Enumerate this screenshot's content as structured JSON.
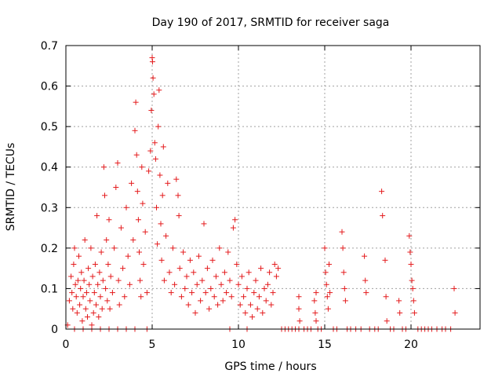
{
  "chart_data": {
    "type": "scatter",
    "title": "Day 190 of 2017, SRMTID for receiver saga",
    "xlabel": "GPS time / hours",
    "ylabel": "SRMTID / TECUs",
    "xlim": [
      0,
      24
    ],
    "ylim": [
      0,
      0.7
    ],
    "xticks": [
      0,
      5,
      10,
      15,
      20
    ],
    "yticks": [
      0,
      0.1,
      0.2,
      0.3,
      0.4,
      0.5,
      0.6,
      0.7
    ],
    "x_tick_labels": [
      "0",
      "5",
      "10",
      "15",
      "20"
    ],
    "y_tick_labels": [
      "0",
      "0.1",
      "0.2",
      "0.3",
      "0.4",
      "0.5",
      "0.6",
      "0.7"
    ],
    "grid": true,
    "marker": "plus",
    "series_color": "#e41a1c",
    "series": [
      {
        "name": "SRMTID",
        "points": [
          [
            0.1,
            0.01
          ],
          [
            0.2,
            0.07
          ],
          [
            0.3,
            0.13
          ],
          [
            0.35,
            0.09
          ],
          [
            0.4,
            0.05
          ],
          [
            0.45,
            0.16
          ],
          [
            0.5,
            0.2
          ],
          [
            0.55,
            0.11
          ],
          [
            0.6,
            0.08
          ],
          [
            0.65,
            0.04
          ],
          [
            0.7,
            0.12
          ],
          [
            0.75,
            0.18
          ],
          [
            0.8,
            0.06
          ],
          [
            0.85,
            0.1
          ],
          [
            0.9,
            0.14
          ],
          [
            0.95,
            0.02
          ],
          [
            1.0,
            0.08
          ],
          [
            1.05,
            0.12
          ],
          [
            1.1,
            0.22
          ],
          [
            1.15,
            0.05
          ],
          [
            1.2,
            0.09
          ],
          [
            1.25,
            0.03
          ],
          [
            1.3,
            0.15
          ],
          [
            1.35,
            0.11
          ],
          [
            1.4,
            0.07
          ],
          [
            1.45,
            0.2
          ],
          [
            1.5,
            0.01
          ],
          [
            1.55,
            0.13
          ],
          [
            1.6,
            0.04
          ],
          [
            1.65,
            0.09
          ],
          [
            1.7,
            0.16
          ],
          [
            1.75,
            0.06
          ],
          [
            1.8,
            0.28
          ],
          [
            1.85,
            0.11
          ],
          [
            1.9,
            0.03
          ],
          [
            1.95,
            0.14
          ],
          [
            2.0,
            0.08
          ],
          [
            2.05,
            0.19
          ],
          [
            2.1,
            0.05
          ],
          [
            2.15,
            0.12
          ],
          [
            2.2,
            0.4
          ],
          [
            2.25,
            0.33
          ],
          [
            2.3,
            0.1
          ],
          [
            2.35,
            0.22
          ],
          [
            2.4,
            0.07
          ],
          [
            2.45,
            0.16
          ],
          [
            2.5,
            0.27
          ],
          [
            2.55,
            0.05
          ],
          [
            2.6,
            0.13
          ],
          [
            2.7,
            0.09
          ],
          [
            2.8,
            0.2
          ],
          [
            2.9,
            0.35
          ],
          [
            3.0,
            0.41
          ],
          [
            3.05,
            0.12
          ],
          [
            3.1,
            0.06
          ],
          [
            3.2,
            0.25
          ],
          [
            3.3,
            0.15
          ],
          [
            3.4,
            0.08
          ],
          [
            3.5,
            0.3
          ],
          [
            3.6,
            0.18
          ],
          [
            3.7,
            0.11
          ],
          [
            3.8,
            0.36
          ],
          [
            3.9,
            0.22
          ],
          [
            4.0,
            0.49
          ],
          [
            4.05,
            0.56
          ],
          [
            4.1,
            0.43
          ],
          [
            4.15,
            0.34
          ],
          [
            4.2,
            0.27
          ],
          [
            4.25,
            0.19
          ],
          [
            4.3,
            0.12
          ],
          [
            4.35,
            0.08
          ],
          [
            4.4,
            0.4
          ],
          [
            4.45,
            0.31
          ],
          [
            4.5,
            0.16
          ],
          [
            4.6,
            0.24
          ],
          [
            4.7,
            0.09
          ],
          [
            4.8,
            0.39
          ],
          [
            4.9,
            0.44
          ],
          [
            4.95,
            0.54
          ],
          [
            5.0,
            0.67
          ],
          [
            5.02,
            0.66
          ],
          [
            5.05,
            0.62
          ],
          [
            5.1,
            0.58
          ],
          [
            5.15,
            0.46
          ],
          [
            5.2,
            0.42
          ],
          [
            5.25,
            0.3
          ],
          [
            5.3,
            0.21
          ],
          [
            5.35,
            0.5
          ],
          [
            5.4,
            0.59
          ],
          [
            5.45,
            0.38
          ],
          [
            5.5,
            0.26
          ],
          [
            5.55,
            0.17
          ],
          [
            5.6,
            0.33
          ],
          [
            5.65,
            0.45
          ],
          [
            5.7,
            0.12
          ],
          [
            5.8,
            0.23
          ],
          [
            5.9,
            0.36
          ],
          [
            6.0,
            0.14
          ],
          [
            6.1,
            0.09
          ],
          [
            6.2,
            0.2
          ],
          [
            6.3,
            0.11
          ],
          [
            6.4,
            0.37
          ],
          [
            6.5,
            0.33
          ],
          [
            6.55,
            0.28
          ],
          [
            6.6,
            0.15
          ],
          [
            6.7,
            0.08
          ],
          [
            6.8,
            0.19
          ],
          [
            6.9,
            0.1
          ],
          [
            7.0,
            0.13
          ],
          [
            7.1,
            0.06
          ],
          [
            7.2,
            0.17
          ],
          [
            7.3,
            0.09
          ],
          [
            7.4,
            0.14
          ],
          [
            7.5,
            0.04
          ],
          [
            7.6,
            0.11
          ],
          [
            7.7,
            0.18
          ],
          [
            7.8,
            0.07
          ],
          [
            7.9,
            0.12
          ],
          [
            8.0,
            0.26
          ],
          [
            8.1,
            0.09
          ],
          [
            8.2,
            0.15
          ],
          [
            8.3,
            0.05
          ],
          [
            8.4,
            0.1
          ],
          [
            8.5,
            0.17
          ],
          [
            8.6,
            0.08
          ],
          [
            8.7,
            0.13
          ],
          [
            8.8,
            0.06
          ],
          [
            8.9,
            0.2
          ],
          [
            9.0,
            0.11
          ],
          [
            9.1,
            0.07
          ],
          [
            9.2,
            0.14
          ],
          [
            9.3,
            0.09
          ],
          [
            9.4,
            0.19
          ],
          [
            9.5,
            0.12
          ],
          [
            9.6,
            0.08
          ],
          [
            9.7,
            0.25
          ],
          [
            9.8,
            0.27
          ],
          [
            9.9,
            0.16
          ],
          [
            10.0,
            0.11
          ],
          [
            10.1,
            0.06
          ],
          [
            10.2,
            0.13
          ],
          [
            10.3,
            0.08
          ],
          [
            10.4,
            0.04
          ],
          [
            10.5,
            0.1
          ],
          [
            10.6,
            0.14
          ],
          [
            10.7,
            0.06
          ],
          [
            10.8,
            0.03
          ],
          [
            10.9,
            0.09
          ],
          [
            11.0,
            0.12
          ],
          [
            11.1,
            0.05
          ],
          [
            11.2,
            0.08
          ],
          [
            11.3,
            0.15
          ],
          [
            11.4,
            0.04
          ],
          [
            11.5,
            0.1
          ],
          [
            11.6,
            0.07
          ],
          [
            11.7,
            0.11
          ],
          [
            11.8,
            0.14
          ],
          [
            11.9,
            0.06
          ],
          [
            12.0,
            0.09
          ],
          [
            12.1,
            0.16
          ],
          [
            12.2,
            0.13
          ],
          [
            12.3,
            0.15
          ],
          [
            13.5,
            0.08
          ],
          [
            13.5,
            0.05
          ],
          [
            13.55,
            0.02
          ],
          [
            14.4,
            0.07
          ],
          [
            14.45,
            0.04
          ],
          [
            14.5,
            0.09
          ],
          [
            14.5,
            0.02
          ],
          [
            15.0,
            0.2
          ],
          [
            15.05,
            0.14
          ],
          [
            15.1,
            0.11
          ],
          [
            15.15,
            0.08
          ],
          [
            15.2,
            0.05
          ],
          [
            15.25,
            0.16
          ],
          [
            15.3,
            0.09
          ],
          [
            16.0,
            0.24
          ],
          [
            16.05,
            0.2
          ],
          [
            16.1,
            0.14
          ],
          [
            16.15,
            0.1
          ],
          [
            16.2,
            0.07
          ],
          [
            17.3,
            0.18
          ],
          [
            17.35,
            0.12
          ],
          [
            17.4,
            0.09
          ],
          [
            18.3,
            0.34
          ],
          [
            18.35,
            0.28
          ],
          [
            18.5,
            0.17
          ],
          [
            18.55,
            0.08
          ],
          [
            18.6,
            0.02
          ],
          [
            19.3,
            0.07
          ],
          [
            19.35,
            0.04
          ],
          [
            19.9,
            0.23
          ],
          [
            19.95,
            0.19
          ],
          [
            20.0,
            0.16
          ],
          [
            20.05,
            0.12
          ],
          [
            20.1,
            0.1
          ],
          [
            20.15,
            0.07
          ],
          [
            20.2,
            0.04
          ],
          [
            22.5,
            0.1
          ],
          [
            22.55,
            0.04
          ],
          [
            0.5,
            0.0
          ],
          [
            1.0,
            0.0
          ],
          [
            1.5,
            0.0
          ],
          [
            2.0,
            0.0
          ],
          [
            2.5,
            0.0
          ],
          [
            3.0,
            0.0
          ],
          [
            3.5,
            0.0
          ],
          [
            4.0,
            0.0
          ],
          [
            4.7,
            0.0
          ],
          [
            9.5,
            0.0
          ],
          [
            10.5,
            0.0
          ],
          [
            12.5,
            0.0
          ],
          [
            12.7,
            0.0
          ],
          [
            12.9,
            0.0
          ],
          [
            13.1,
            0.0
          ],
          [
            13.3,
            0.0
          ],
          [
            13.5,
            0.0
          ],
          [
            13.8,
            0.0
          ],
          [
            14.0,
            0.0
          ],
          [
            14.2,
            0.0
          ],
          [
            14.6,
            0.0
          ],
          [
            14.8,
            0.0
          ],
          [
            15.5,
            0.0
          ],
          [
            15.7,
            0.0
          ],
          [
            16.3,
            0.0
          ],
          [
            16.5,
            0.0
          ],
          [
            16.8,
            0.0
          ],
          [
            17.1,
            0.0
          ],
          [
            17.6,
            0.0
          ],
          [
            17.9,
            0.0
          ],
          [
            18.1,
            0.0
          ],
          [
            18.8,
            0.0
          ],
          [
            19.0,
            0.0
          ],
          [
            19.5,
            0.0
          ],
          [
            19.7,
            0.0
          ],
          [
            20.4,
            0.0
          ],
          [
            20.6,
            0.0
          ],
          [
            20.8,
            0.0
          ],
          [
            21.0,
            0.0
          ],
          [
            21.2,
            0.0
          ],
          [
            21.5,
            0.0
          ],
          [
            21.8,
            0.0
          ],
          [
            22.0,
            0.0
          ],
          [
            22.3,
            0.0
          ]
        ]
      }
    ]
  }
}
